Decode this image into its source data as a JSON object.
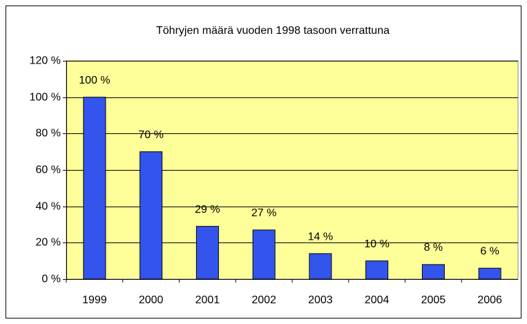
{
  "chart_data": {
    "type": "bar",
    "title": "Töhryjen määrä vuoden 1998 tasoon verrattuna",
    "categories": [
      "1999",
      "2000",
      "2001",
      "2002",
      "2003",
      "2004",
      "2005",
      "2006"
    ],
    "values": [
      100,
      70,
      29,
      27,
      14,
      10,
      8,
      6
    ],
    "value_labels": [
      "100 %",
      "70 %",
      "29 %",
      "27 %",
      "14 %",
      "10 %",
      "8 %",
      "6 %"
    ],
    "color": "#3355ee",
    "plot_background": "#ffff99",
    "ylim": [
      0,
      120
    ],
    "yticks": [
      {
        "value": 0,
        "label": "0 %"
      },
      {
        "value": 20,
        "label": "20 %"
      },
      {
        "value": 40,
        "label": "40 %"
      },
      {
        "value": 60,
        "label": "60 %"
      },
      {
        "value": 80,
        "label": "80 %"
      },
      {
        "value": 100,
        "label": "100 %"
      },
      {
        "value": 120,
        "label": "120 %"
      }
    ],
    "grid": true
  }
}
